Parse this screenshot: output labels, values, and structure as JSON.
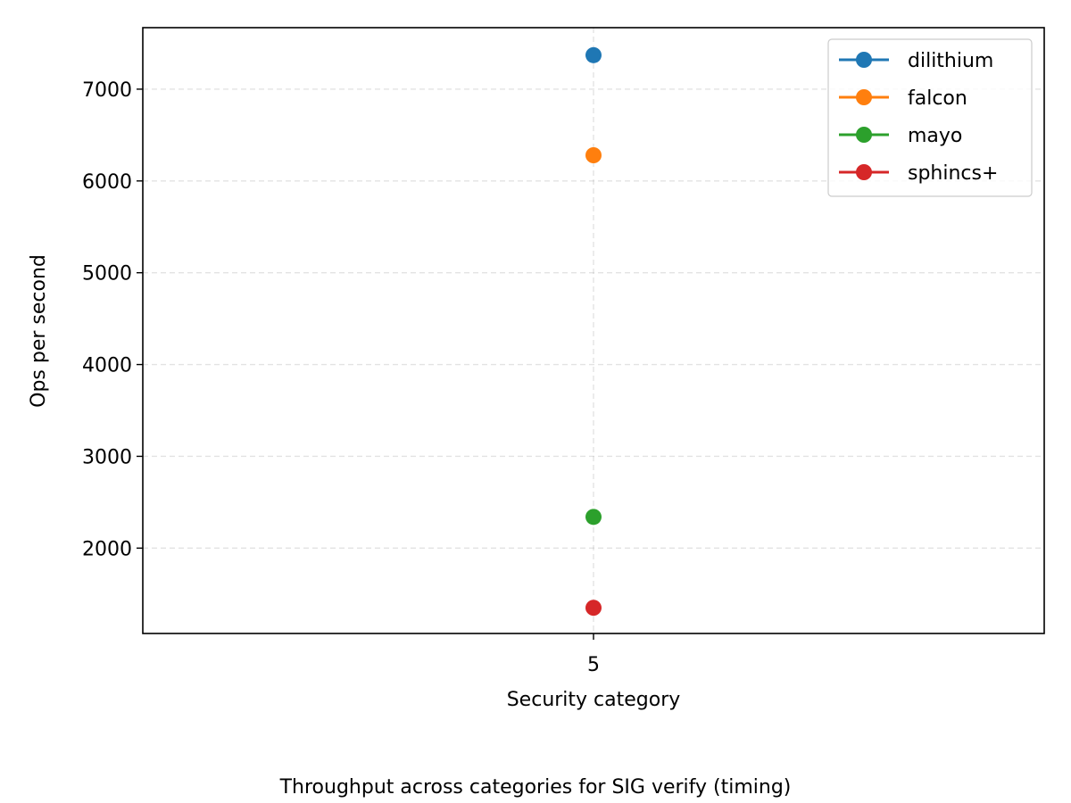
{
  "chart_data": {
    "type": "scatter",
    "x_ticks": [
      "5"
    ],
    "x": [
      5
    ],
    "xlabel": "Security category",
    "ylabel": "Ops per second",
    "caption": "Throughput across categories for SIG verify (timing)",
    "ylim": [
      1070,
      7670
    ],
    "y_ticks": [
      2000,
      3000,
      4000,
      5000,
      6000,
      7000
    ],
    "grid": true,
    "legend_position": "top-right",
    "series": [
      {
        "name": "dilithium",
        "color": "#1f77b4",
        "values": [
          7370
        ]
      },
      {
        "name": "falcon",
        "color": "#ff7f0e",
        "values": [
          6280
        ]
      },
      {
        "name": "mayo",
        "color": "#2ca02c",
        "values": [
          2340
        ]
      },
      {
        "name": "sphincs+",
        "color": "#d62728",
        "values": [
          1350
        ]
      }
    ]
  }
}
